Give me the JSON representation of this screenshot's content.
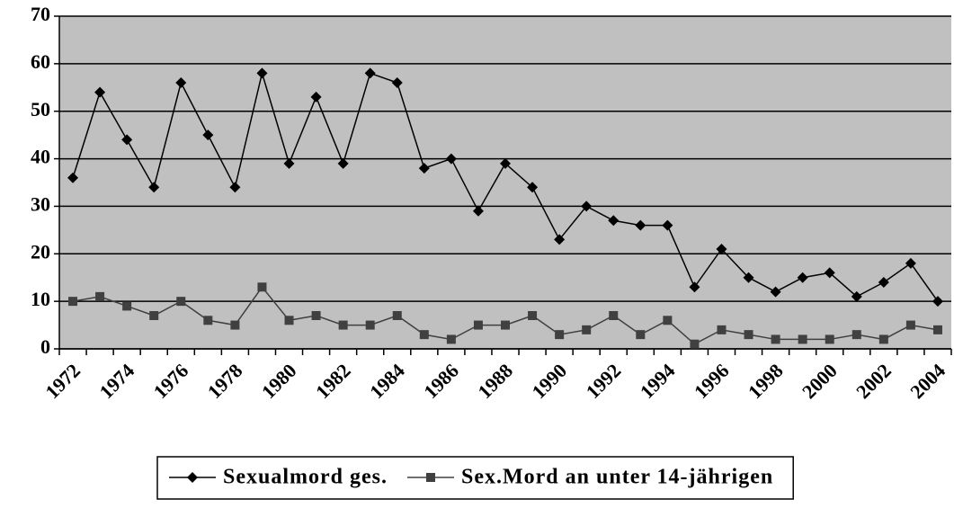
{
  "chart_data": {
    "type": "line",
    "categories": [
      "1972",
      null,
      "1974",
      null,
      "1976",
      null,
      "1978",
      null,
      "1980",
      null,
      "1982",
      null,
      "1984",
      null,
      "1986",
      null,
      "1988",
      null,
      "1990",
      null,
      "1992",
      null,
      "1994",
      null,
      "1996",
      null,
      "1998",
      null,
      "2000",
      null,
      "2002",
      null,
      "2004"
    ],
    "series": [
      {
        "name": "Sexualmord ges.",
        "color": "#000000",
        "marker": "diamond",
        "values": [
          36,
          54,
          44,
          34,
          56,
          45,
          34,
          58,
          39,
          53,
          39,
          58,
          56,
          38,
          40,
          29,
          39,
          34,
          23,
          30,
          27,
          26,
          26,
          13,
          21,
          15,
          12,
          15,
          16,
          11,
          14,
          18,
          10
        ]
      },
      {
        "name": "Sex.Mord an unter 14-jährigen",
        "color": "#404040",
        "marker": "square",
        "values": [
          10,
          11,
          9,
          7,
          10,
          6,
          5,
          13,
          6,
          7,
          5,
          5,
          7,
          3,
          2,
          5,
          5,
          7,
          3,
          4,
          7,
          3,
          6,
          1,
          4,
          3,
          2,
          2,
          2,
          3,
          2,
          5,
          4
        ]
      }
    ],
    "ylim": [
      0,
      70
    ],
    "yticks": [
      0,
      10,
      20,
      30,
      40,
      50,
      60,
      70
    ],
    "grid": true,
    "plot_background": "#c0c0c0",
    "legend": "bottom"
  }
}
